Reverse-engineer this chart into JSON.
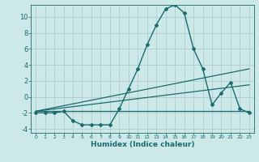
{
  "xlabel": "Humidex (Indice chaleur)",
  "background_color": "#cce8e8",
  "grid_color": "#b0cccc",
  "line_color": "#1a6b6b",
  "xlim": [
    -0.5,
    23.5
  ],
  "ylim": [
    -4.5,
    11.5
  ],
  "xticks": [
    0,
    1,
    2,
    3,
    4,
    5,
    6,
    7,
    8,
    9,
    10,
    11,
    12,
    13,
    14,
    15,
    16,
    17,
    18,
    19,
    20,
    21,
    22,
    23
  ],
  "yticks": [
    -4,
    -2,
    0,
    2,
    4,
    6,
    8,
    10
  ],
  "series": [
    {
      "x": [
        0,
        1,
        2,
        3,
        4,
        5,
        6,
        7,
        8,
        9,
        10,
        11,
        12,
        13,
        14,
        15,
        16,
        17,
        18,
        19,
        20,
        21,
        22,
        23
      ],
      "y": [
        -2,
        -2,
        -2,
        -1.8,
        -3,
        -3.5,
        -3.5,
        -3.5,
        -3.5,
        -1.5,
        1,
        3.5,
        6.5,
        9,
        11,
        11.5,
        10.5,
        6,
        3.5,
        -1,
        0.5,
        1.8,
        -1.5,
        -2
      ],
      "marker": "D",
      "markersize": 2.0,
      "linewidth": 1.0
    },
    {
      "x": [
        0,
        23
      ],
      "y": [
        -1.8,
        3.5
      ],
      "marker": null,
      "linewidth": 0.9
    },
    {
      "x": [
        0,
        23
      ],
      "y": [
        -1.8,
        -1.8
      ],
      "marker": null,
      "linewidth": 0.9
    },
    {
      "x": [
        0,
        23
      ],
      "y": [
        -1.8,
        1.5
      ],
      "marker": null,
      "linewidth": 0.9
    }
  ]
}
